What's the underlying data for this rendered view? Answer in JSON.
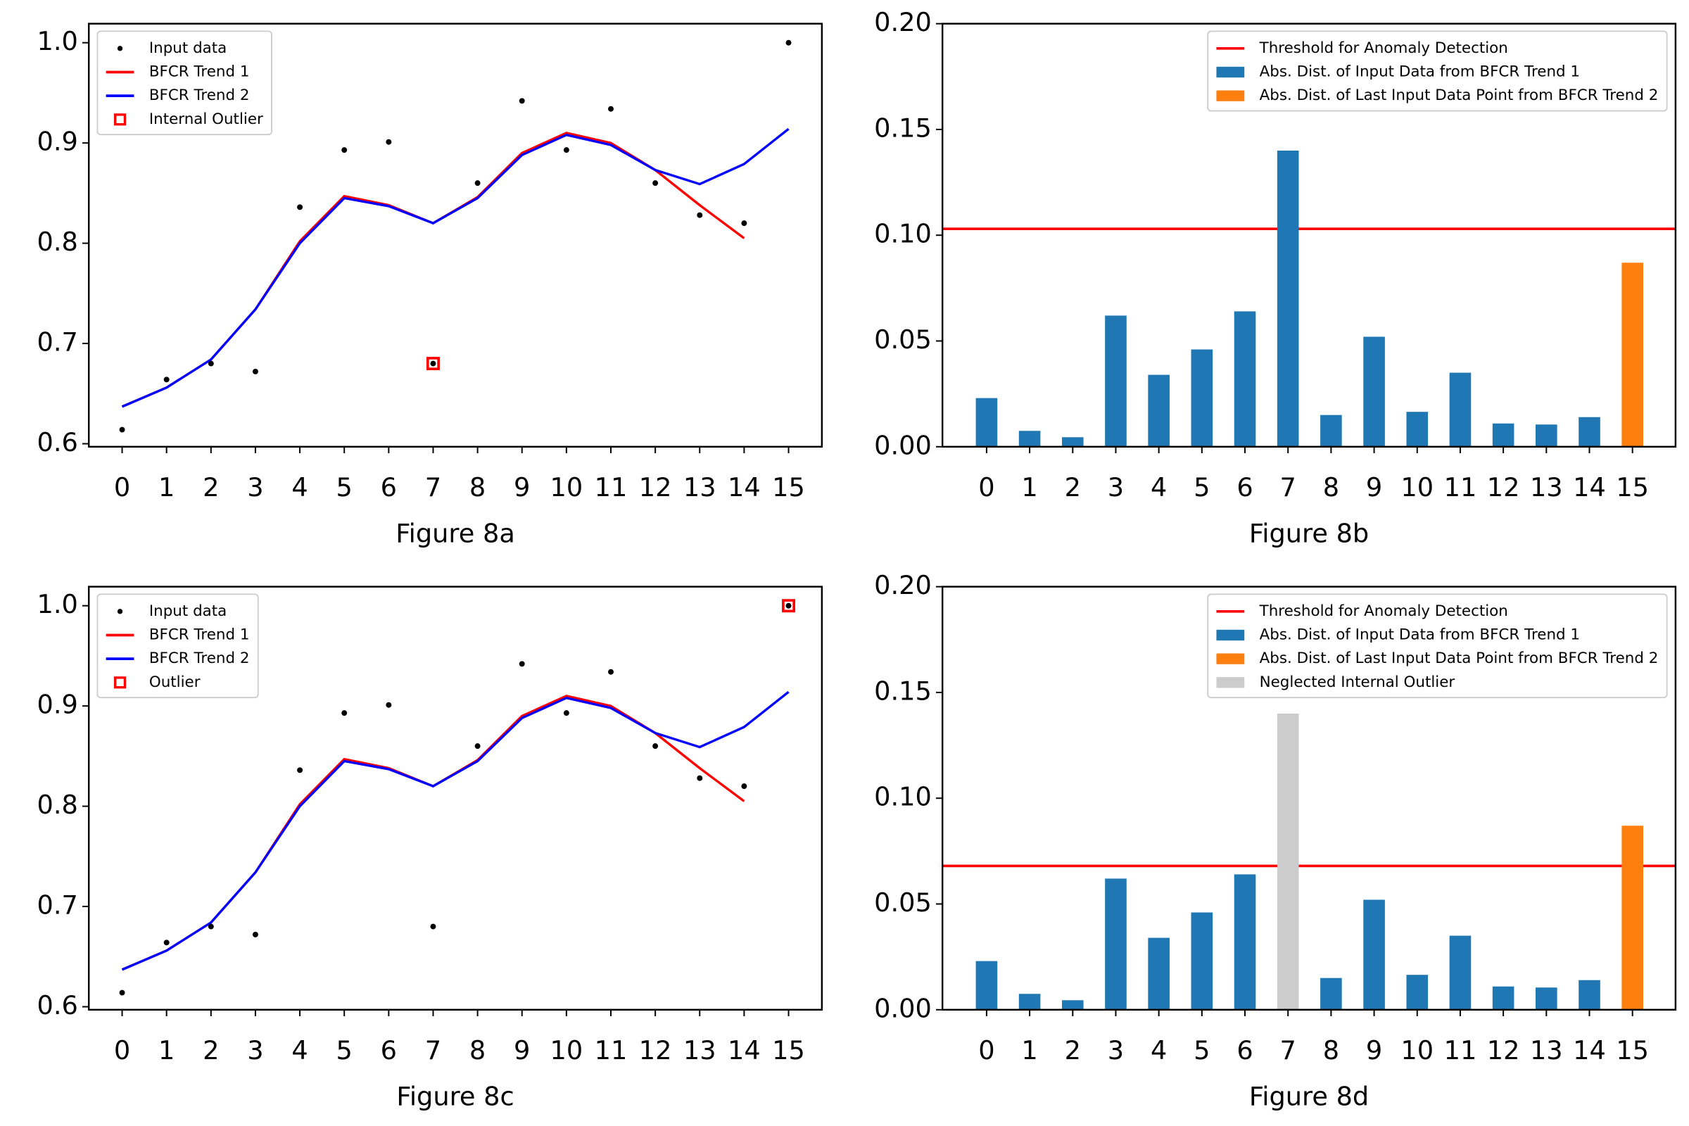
{
  "chart_data": [
    {
      "type": "line",
      "xlabel": "Figure 8a",
      "legend": "upper left",
      "x": [
        0,
        1,
        2,
        3,
        4,
        5,
        6,
        7,
        8,
        9,
        10,
        11,
        12,
        13,
        14,
        15
      ],
      "xlim": [
        -0.75,
        15.75
      ],
      "ylim": [
        0.597,
        1.019
      ],
      "xticks": [
        0,
        1,
        2,
        3,
        4,
        5,
        6,
        7,
        8,
        9,
        10,
        11,
        12,
        13,
        14,
        15
      ],
      "yticks": [
        0.6,
        0.7,
        0.8,
        0.9,
        {
          "value": 1,
          "label": "1.0"
        }
      ],
      "series": [
        {
          "name": "Input data",
          "kind": "scatter",
          "color": "#000000",
          "values": [
            0.614,
            0.664,
            0.68,
            0.672,
            0.836,
            0.893,
            0.901,
            0.68,
            0.86,
            0.942,
            0.893,
            0.934,
            0.86,
            0.828,
            0.82,
            1.0
          ]
        },
        {
          "name": "BFCR Trend 1",
          "kind": "line",
          "color": "#ff0000",
          "values": [
            0.637,
            0.656,
            0.684,
            0.734,
            0.802,
            0.847,
            0.838,
            0.82,
            0.846,
            0.89,
            0.91,
            0.9,
            0.873,
            0.838,
            0.805,
            null
          ]
        },
        {
          "name": "BFCR Trend 2",
          "kind": "line",
          "color": "#0000ff",
          "values": [
            0.637,
            0.656,
            0.684,
            0.734,
            0.8,
            0.845,
            0.837,
            0.82,
            0.845,
            0.888,
            0.908,
            0.898,
            0.873,
            0.859,
            0.879,
            0.914
          ]
        },
        {
          "name": "Internal Outlier",
          "kind": "marker",
          "color": "#ff0000",
          "x": [
            7
          ],
          "values": [
            0.68
          ]
        }
      ]
    },
    {
      "type": "bar",
      "xlabel": "Figure 8b",
      "legend": "upper right",
      "x": [
        0,
        1,
        2,
        3,
        4,
        5,
        6,
        7,
        8,
        9,
        10,
        11,
        12,
        13,
        14,
        15
      ],
      "xlim": [
        -1.025,
        16.0
      ],
      "ylim": [
        0,
        0.2
      ],
      "xticks": [
        0,
        1,
        2,
        3,
        4,
        5,
        6,
        7,
        8,
        9,
        10,
        11,
        12,
        13,
        14,
        15
      ],
      "yticks": [
        {
          "value": 0,
          "label": "0.00"
        },
        {
          "value": 0.05,
          "label": "0.05"
        },
        {
          "value": 0.1,
          "label": "0.10"
        },
        {
          "value": 0.15,
          "label": "0.15"
        },
        {
          "value": 0.2,
          "label": "0.20"
        }
      ],
      "series": [
        {
          "name": "Threshold for Anomaly Detection",
          "kind": "hline",
          "color": "#ff0000",
          "value": 0.103
        },
        {
          "name": "Abs. Dist. of Input Data from BFCR Trend 1",
          "kind": "bar",
          "color": "#1f77b4",
          "values": [
            0.023,
            0.0075,
            0.0045,
            0.062,
            0.034,
            0.046,
            0.064,
            0.14,
            0.015,
            0.052,
            0.0165,
            0.035,
            0.011,
            0.0105,
            0.014,
            null
          ]
        },
        {
          "name": "Abs. Dist. of Last Input Data Point from BFCR Trend 2",
          "kind": "bar",
          "color": "#ff7f0e",
          "values": [
            null,
            null,
            null,
            null,
            null,
            null,
            null,
            null,
            null,
            null,
            null,
            null,
            null,
            null,
            null,
            0.087
          ]
        }
      ]
    },
    {
      "type": "line",
      "xlabel": "Figure 8c",
      "legend": "upper left",
      "x": [
        0,
        1,
        2,
        3,
        4,
        5,
        6,
        7,
        8,
        9,
        10,
        11,
        12,
        13,
        14,
        15
      ],
      "xlim": [
        -0.75,
        15.75
      ],
      "ylim": [
        0.597,
        1.019
      ],
      "xticks": [
        0,
        1,
        2,
        3,
        4,
        5,
        6,
        7,
        8,
        9,
        10,
        11,
        12,
        13,
        14,
        15
      ],
      "yticks": [
        0.6,
        0.7,
        0.8,
        0.9,
        {
          "value": 1,
          "label": "1.0"
        }
      ],
      "series": [
        {
          "name": "Input data",
          "kind": "scatter",
          "color": "#000000",
          "values": [
            0.614,
            0.664,
            0.68,
            0.672,
            0.836,
            0.893,
            0.901,
            0.68,
            0.86,
            0.942,
            0.893,
            0.934,
            0.86,
            0.828,
            0.82,
            1.0
          ]
        },
        {
          "name": "BFCR Trend 1",
          "kind": "line",
          "color": "#ff0000",
          "values": [
            0.637,
            0.656,
            0.684,
            0.734,
            0.802,
            0.847,
            0.838,
            0.82,
            0.846,
            0.89,
            0.91,
            0.9,
            0.873,
            0.838,
            0.805,
            null
          ]
        },
        {
          "name": "BFCR Trend 2",
          "kind": "line",
          "color": "#0000ff",
          "values": [
            0.637,
            0.656,
            0.684,
            0.734,
            0.8,
            0.845,
            0.837,
            0.82,
            0.845,
            0.888,
            0.908,
            0.898,
            0.873,
            0.859,
            0.879,
            0.914
          ]
        },
        {
          "name": "Outlier",
          "kind": "marker",
          "color": "#ff0000",
          "x": [
            15
          ],
          "values": [
            1.0
          ]
        }
      ]
    },
    {
      "type": "bar",
      "xlabel": "Figure 8d",
      "legend": "upper right",
      "x": [
        0,
        1,
        2,
        3,
        4,
        5,
        6,
        7,
        8,
        9,
        10,
        11,
        12,
        13,
        14,
        15
      ],
      "xlim": [
        -1.025,
        16.0
      ],
      "ylim": [
        0,
        0.2
      ],
      "xticks": [
        0,
        1,
        2,
        3,
        4,
        5,
        6,
        7,
        8,
        9,
        10,
        11,
        12,
        13,
        14,
        15
      ],
      "yticks": [
        {
          "value": 0,
          "label": "0.00"
        },
        {
          "value": 0.05,
          "label": "0.05"
        },
        {
          "value": 0.1,
          "label": "0.10"
        },
        {
          "value": 0.15,
          "label": "0.15"
        },
        {
          "value": 0.2,
          "label": "0.20"
        }
      ],
      "series": [
        {
          "name": "Threshold for Anomaly Detection",
          "kind": "hline",
          "color": "#ff0000",
          "value": 0.068
        },
        {
          "name": "Abs. Dist. of Input Data from BFCR Trend 1",
          "kind": "bar",
          "color": "#1f77b4",
          "values": [
            0.023,
            0.0075,
            0.0045,
            0.062,
            0.034,
            0.046,
            0.064,
            null,
            0.015,
            0.052,
            0.0165,
            0.035,
            0.011,
            0.0105,
            0.014,
            null
          ]
        },
        {
          "name": "Abs. Dist. of Last Input Data Point from BFCR Trend 2",
          "kind": "bar",
          "color": "#ff7f0e",
          "values": [
            null,
            null,
            null,
            null,
            null,
            null,
            null,
            null,
            null,
            null,
            null,
            null,
            null,
            null,
            null,
            0.087
          ]
        },
        {
          "name": "Neglected Internal Outlier",
          "kind": "bar",
          "color": "#cccccc",
          "values": [
            null,
            null,
            null,
            null,
            null,
            null,
            null,
            0.14,
            null,
            null,
            null,
            null,
            null,
            null,
            null,
            null
          ]
        }
      ]
    }
  ]
}
